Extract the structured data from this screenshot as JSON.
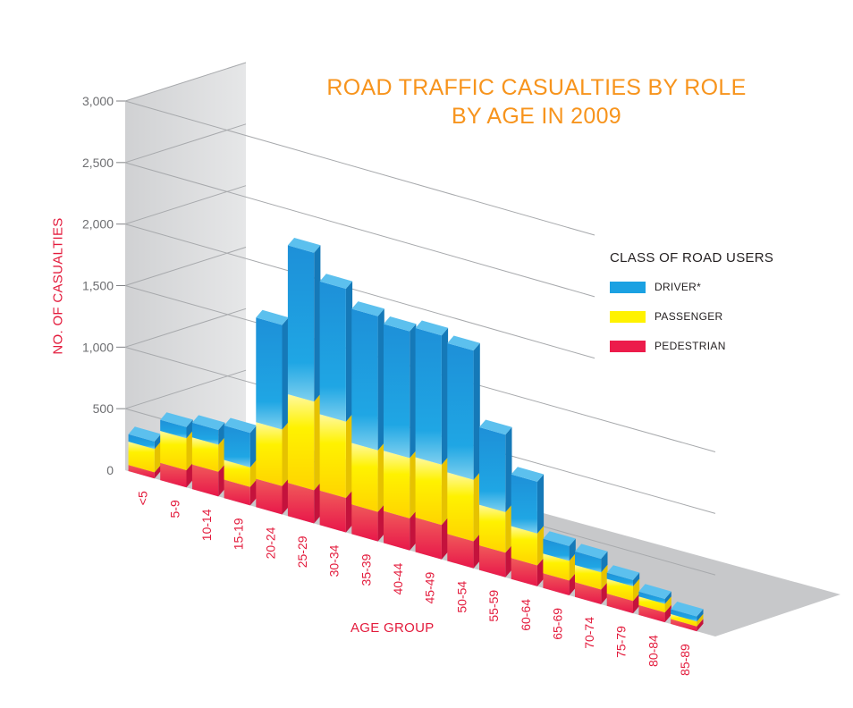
{
  "chart_data": {
    "type": "bar",
    "stacked": true,
    "title_line1": "ROAD TRAFFIC CASUALTIES BY ROLE",
    "title_line2": "BY AGE IN 2009",
    "xlabel": "AGE GROUP",
    "ylabel": "NO. OF CASUALTIES",
    "ylim": [
      0,
      3000
    ],
    "yticks": [
      "0",
      "500",
      "1,000",
      "1,500",
      "2,000",
      "2,500",
      "3,000"
    ],
    "legend_title": "CLASS OF ROAD USERS",
    "legend_position": "right",
    "categories": [
      "<5",
      "5-9",
      "10-14",
      "15-19",
      "20-24",
      "25-29",
      "30-34",
      "35-39",
      "40-44",
      "45-49",
      "50-54",
      "55-59",
      "60-64",
      "65-69",
      "70-74",
      "75-79",
      "80-84",
      "85-89"
    ],
    "series": [
      {
        "name": "PEDESTRIAN",
        "color": "#ec1c4b",
        "values": [
          50,
          140,
          200,
          150,
          230,
          270,
          280,
          240,
          260,
          280,
          220,
          200,
          170,
          120,
          120,
          100,
          80,
          40
        ]
      },
      {
        "name": "PASSENGER",
        "color": "#fff200",
        "values": [
          190,
          260,
          220,
          160,
          460,
          720,
          620,
          500,
          490,
          490,
          500,
          330,
          260,
          160,
          140,
          120,
          70,
          40
        ]
      },
      {
        "name": "DRIVER*",
        "color": "#1ba1e2",
        "values": [
          60,
          90,
          120,
          280,
          850,
          1210,
          1080,
          1090,
          1030,
          1050,
          1050,
          630,
          420,
          120,
          110,
          50,
          40,
          40
        ]
      }
    ]
  }
}
